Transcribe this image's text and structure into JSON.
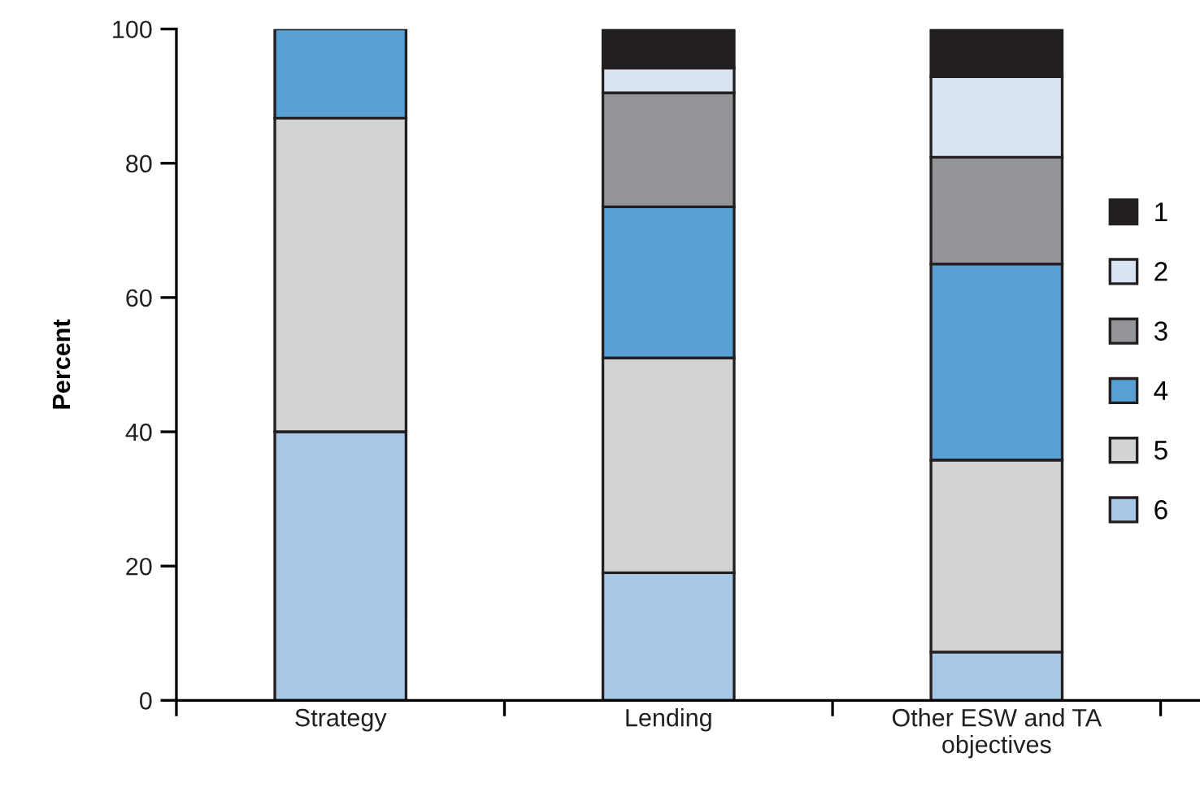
{
  "chart_data": {
    "type": "bar",
    "stacked": true,
    "ylabel": "Percent",
    "categories": [
      "Strategy",
      "Lending",
      "Other ESW and TA\nobjectives"
    ],
    "series": [
      {
        "name": "6",
        "color": "#a7c7e6",
        "values": [
          40,
          19,
          7.2
        ]
      },
      {
        "name": "5",
        "color": "#d1d3d4",
        "values": [
          46.7,
          32,
          28.6
        ]
      },
      {
        "name": "4",
        "color": "#589fd3",
        "values": [
          13.3,
          22.5,
          29.2
        ]
      },
      {
        "name": "3",
        "color": "#939598",
        "values": [
          null,
          17,
          15.9
        ]
      },
      {
        "name": "2",
        "color": "#d9e4f3",
        "values": [
          null,
          3.7,
          12
        ]
      },
      {
        "name": "1",
        "color": "#231f20",
        "values": [
          null,
          5.8,
          7.1
        ]
      }
    ],
    "ylim": [
      0,
      100
    ],
    "yticks": [
      0,
      20,
      40,
      60,
      80,
      100
    ],
    "grid": false,
    "legend": "right"
  }
}
